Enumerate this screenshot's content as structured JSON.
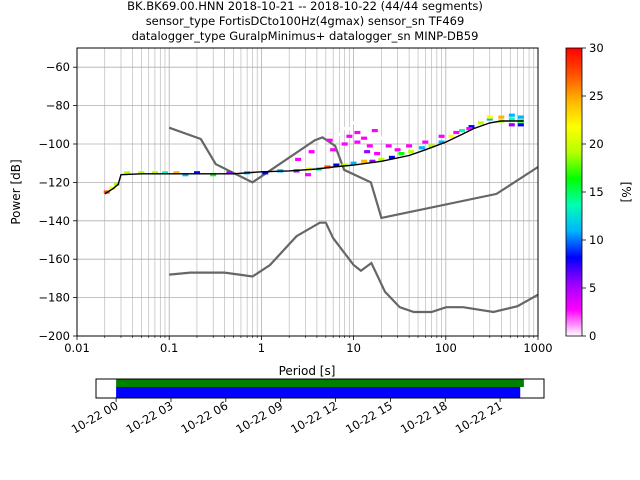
{
  "title_lines": [
    "BK.BK69.00.HNN   2018-10-21 -- 2018-10-22  (44/44 segments)",
    "sensor_type FortisDCto100Hz(4gmax) sensor_sn TF469",
    "datalogger_type GuralpMinimus+ datalogger_sn MINP-DB59"
  ],
  "chart_data": [
    {
      "type": "heatmap",
      "xlabel": "Period [s]",
      "ylabel": "Power [dB]",
      "x_scale": "log",
      "xlim": [
        0.01,
        1000
      ],
      "ylim": [
        -200,
        -50
      ],
      "x_ticks": [
        0.01,
        0.1,
        1,
        10,
        100,
        1000
      ],
      "x_tick_labels": [
        "0.01",
        "0.1",
        "1",
        "10",
        "100",
        "1000"
      ],
      "y_ticks": [
        -200,
        -180,
        -160,
        -140,
        -120,
        -100,
        -80,
        -60
      ],
      "y_tick_labels": [
        "−200",
        "−180",
        "−160",
        "−140",
        "−120",
        "−100",
        "−80",
        "−60"
      ],
      "grid": true,
      "colorbar": {
        "label": "[%]",
        "range": [
          0,
          30
        ],
        "ticks": [
          0,
          5,
          10,
          15,
          20,
          25,
          30
        ],
        "tick_labels": [
          "0",
          "5",
          "10",
          "15",
          "20",
          "25",
          "30"
        ],
        "colors": [
          "#ffffff",
          "#ff00ff",
          "#9b00ff",
          "#0000ff",
          "#00b4ff",
          "#00ffb4",
          "#00ff00",
          "#b4ff00",
          "#ffff00",
          "#ffb400",
          "#ff5000",
          "#ff0000"
        ]
      },
      "noise_models": [
        {
          "role": "high",
          "color": "#666666",
          "x": [
            0.1,
            0.22,
            0.32,
            0.8,
            3.8,
            4.6,
            6.3,
            7.9,
            15.4,
            20,
            354.8,
            1000
          ],
          "y": [
            -91.5,
            -97.4,
            -110.5,
            -120,
            -98,
            -96.5,
            -101,
            -113.5,
            -120,
            -138.5,
            -126,
            -112
          ]
        },
        {
          "role": "low",
          "color": "#666666",
          "x": [
            0.1,
            0.17,
            0.4,
            0.8,
            1.24,
            2.4,
            4.3,
            5,
            6,
            10,
            12,
            15.6,
            21.9,
            31.6,
            45,
            70,
            101,
            154,
            328,
            600,
            1000
          ],
          "y": [
            -168,
            -167,
            -167,
            -169,
            -163,
            -148,
            -141,
            -141,
            -149,
            -163,
            -166,
            -162,
            -177,
            -185,
            -187.5,
            -187.5,
            -185,
            -185,
            -187.5,
            -184.5,
            -178.5
          ]
        }
      ],
      "mode_curve": {
        "color": "#000000",
        "x": [
          0.02,
          0.025,
          0.028,
          0.03,
          0.05,
          0.1,
          0.3,
          0.5,
          1,
          2,
          4,
          6,
          10,
          20,
          40,
          60,
          100,
          150,
          200,
          300,
          400,
          700
        ],
        "y": [
          -126,
          -123,
          -121,
          -116,
          -115.5,
          -115.5,
          -115.5,
          -115.5,
          -114.5,
          -114,
          -113,
          -112,
          -111,
          -109,
          -106,
          -103,
          -99,
          -95,
          -92,
          -89,
          -88,
          -88
        ]
      },
      "heat_cells": [
        {
          "x": 0.021,
          "y": -125,
          "pct": 28
        },
        {
          "x": 0.024,
          "y": -123,
          "pct": 22
        },
        {
          "x": 0.027,
          "y": -121,
          "pct": 20
        },
        {
          "x": 0.035,
          "y": -115,
          "pct": 18
        },
        {
          "x": 0.05,
          "y": -115,
          "pct": 20
        },
        {
          "x": 0.07,
          "y": -115,
          "pct": 18
        },
        {
          "x": 0.09,
          "y": -115,
          "pct": 14
        },
        {
          "x": 0.12,
          "y": -115,
          "pct": 24
        },
        {
          "x": 0.15,
          "y": -116,
          "pct": 12
        },
        {
          "x": 0.2,
          "y": -115,
          "pct": 9
        },
        {
          "x": 0.3,
          "y": -116,
          "pct": 16
        },
        {
          "x": 0.45,
          "y": -115,
          "pct": 6
        },
        {
          "x": 0.7,
          "y": -115,
          "pct": 10
        },
        {
          "x": 1.1,
          "y": -115,
          "pct": 7
        },
        {
          "x": 1.6,
          "y": -114,
          "pct": 12
        },
        {
          "x": 2.4,
          "y": -114,
          "pct": 5
        },
        {
          "x": 3.2,
          "y": -113,
          "pct": 22
        },
        {
          "x": 3.2,
          "y": -116,
          "pct": 4
        },
        {
          "x": 4.2,
          "y": -113,
          "pct": 14
        },
        {
          "x": 5.2,
          "y": -112,
          "pct": 26
        },
        {
          "x": 6.5,
          "y": -111,
          "pct": 8
        },
        {
          "x": 8,
          "y": -111,
          "pct": 20
        },
        {
          "x": 10,
          "y": -110,
          "pct": 12
        },
        {
          "x": 13,
          "y": -109,
          "pct": 24
        },
        {
          "x": 16,
          "y": -109,
          "pct": 6
        },
        {
          "x": 20,
          "y": -108,
          "pct": 18
        },
        {
          "x": 26,
          "y": -107,
          "pct": 9
        },
        {
          "x": 33,
          "y": -105,
          "pct": 15
        },
        {
          "x": 42,
          "y": -104,
          "pct": 20
        },
        {
          "x": 55,
          "y": -102,
          "pct": 12
        },
        {
          "x": 70,
          "y": -101,
          "pct": 18
        },
        {
          "x": 90,
          "y": -99,
          "pct": 10
        },
        {
          "x": 115,
          "y": -96,
          "pct": 22
        },
        {
          "x": 150,
          "y": -93,
          "pct": 14
        },
        {
          "x": 190,
          "y": -91,
          "pct": 8
        },
        {
          "x": 240,
          "y": -89,
          "pct": 20
        },
        {
          "x": 300,
          "y": -87,
          "pct": 12
        },
        {
          "x": 300,
          "y": -86,
          "pct": 22
        },
        {
          "x": 400,
          "y": -88,
          "pct": 18
        },
        {
          "x": 400,
          "y": -86,
          "pct": 24
        },
        {
          "x": 520,
          "y": -87,
          "pct": 14
        },
        {
          "x": 520,
          "y": -85,
          "pct": 10
        },
        {
          "x": 650,
          "y": -88,
          "pct": 16
        },
        {
          "x": 650,
          "y": -86,
          "pct": 12
        },
        {
          "x": 650,
          "y": -90,
          "pct": 8
        },
        {
          "x": 520,
          "y": -90,
          "pct": 6
        },
        {
          "x": 3.5,
          "y": -104,
          "pct": 2
        },
        {
          "x": 4.5,
          "y": -100,
          "pct": 1
        },
        {
          "x": 5.5,
          "y": -98,
          "pct": 2
        },
        {
          "x": 7,
          "y": -95,
          "pct": 1
        },
        {
          "x": 8.5,
          "y": -92,
          "pct": 1
        },
        {
          "x": 10,
          "y": -89,
          "pct": 1
        },
        {
          "x": 12,
          "y": -88,
          "pct": 1
        },
        {
          "x": 14,
          "y": -90,
          "pct": 1
        },
        {
          "x": 17,
          "y": -93,
          "pct": 2
        },
        {
          "x": 20,
          "y": -97,
          "pct": 1
        },
        {
          "x": 24,
          "y": -101,
          "pct": 2
        },
        {
          "x": 9,
          "y": -96,
          "pct": 3
        },
        {
          "x": 11,
          "y": -94,
          "pct": 2
        },
        {
          "x": 13,
          "y": -97,
          "pct": 3
        },
        {
          "x": 6,
          "y": -103,
          "pct": 3
        },
        {
          "x": 15,
          "y": -101,
          "pct": 3
        },
        {
          "x": 2.5,
          "y": -108,
          "pct": 2
        },
        {
          "x": 30,
          "y": -103,
          "pct": 2
        },
        {
          "x": 40,
          "y": -101,
          "pct": 2
        },
        {
          "x": 60,
          "y": -99,
          "pct": 2
        },
        {
          "x": 90,
          "y": -96,
          "pct": 2
        },
        {
          "x": 130,
          "y": -94,
          "pct": 2
        },
        {
          "x": 180,
          "y": -92,
          "pct": 2
        },
        {
          "x": 8,
          "y": -100,
          "pct": 4
        },
        {
          "x": 11,
          "y": -99,
          "pct": 4
        },
        {
          "x": 14,
          "y": -104,
          "pct": 5
        },
        {
          "x": 18,
          "y": -105,
          "pct": 4
        }
      ]
    },
    {
      "type": "bar",
      "role": "data-availability timeline",
      "x_tick_labels": [
        "10-22 00",
        "10-22 03",
        "10-22 06",
        "10-22 09",
        "10-22 12",
        "10-22 15",
        "10-22 18",
        "10-22 21"
      ],
      "x_ticks_hours": [
        0,
        3,
        6,
        9,
        12,
        15,
        18,
        21
      ],
      "xlim_hours": [
        -1.1,
        23.4
      ],
      "series": [
        {
          "color": "#008000",
          "start_hours": 0,
          "end_hours": 22.3
        },
        {
          "color": "#0000ff",
          "start_hours": 0,
          "end_hours": 22.1
        }
      ]
    }
  ]
}
